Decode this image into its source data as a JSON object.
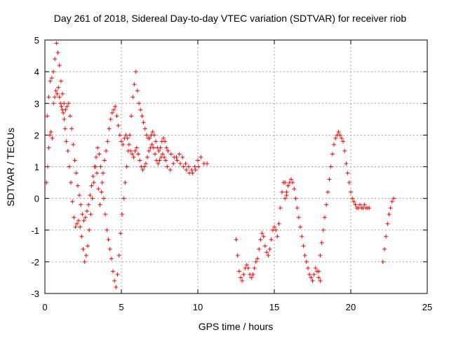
{
  "chart_data": {
    "type": "scatter",
    "title": "Day 261 of 2018, Sidereal Day-to-day VTEC variation (SDTVAR) for receiver riob",
    "xlabel": "GPS time / hours",
    "ylabel": "SDTVAR / TECUs",
    "xlim": [
      0,
      25
    ],
    "ylim": [
      -3,
      5
    ],
    "xticks": [
      "0",
      "5",
      "10",
      "15",
      "20",
      "25"
    ],
    "yticks": [
      "-3",
      "-2",
      "-1",
      "0",
      "1",
      "2",
      "3",
      "4",
      "5"
    ],
    "grid": true,
    "marker": "+",
    "color": "#ff0000",
    "series": [
      {
        "name": "SDTVAR",
        "x": [
          0.1,
          0.18,
          0.25,
          0.32,
          0.4,
          0.48,
          0.56,
          0.64,
          0.72,
          0.8,
          0.88,
          0.95,
          1.02,
          1.08,
          1.14,
          1.2,
          1.26,
          1.32,
          1.4,
          1.5,
          1.6,
          1.7,
          1.8,
          1.9,
          2.0,
          2.1,
          2.2,
          2.3,
          2.4,
          2.5,
          2.6,
          2.7,
          2.8,
          2.9,
          3.0,
          3.1,
          3.2,
          3.3,
          3.4,
          3.5,
          3.6,
          3.7,
          3.8,
          3.9,
          4.0,
          4.1,
          4.2,
          4.3,
          4.4,
          4.5,
          4.6,
          4.7,
          4.8,
          4.9,
          5.0,
          5.1,
          5.2,
          5.3,
          5.4,
          5.5,
          5.6,
          5.7,
          5.8,
          5.9,
          6.0,
          6.1,
          6.2,
          6.3,
          6.4,
          6.5,
          6.6,
          6.7,
          6.8,
          6.9,
          7.0,
          7.1,
          7.2,
          7.3,
          7.4,
          7.5,
          7.6,
          7.7,
          7.8,
          7.9,
          8.0,
          8.2,
          8.4,
          8.6,
          8.8,
          9.0,
          9.2,
          9.4,
          9.6,
          9.8,
          10.0,
          10.2,
          10.4,
          10.6,
          0.15,
          0.25,
          0.35,
          0.45,
          0.55,
          0.65,
          0.75,
          0.85,
          0.95,
          1.05,
          1.15,
          1.25,
          1.35,
          1.45,
          1.55,
          1.65,
          1.75,
          1.85,
          1.95,
          2.05,
          2.15,
          2.25,
          2.35,
          2.45,
          2.55,
          2.65,
          2.75,
          2.85,
          2.95,
          3.05,
          3.15,
          3.25,
          3.35,
          3.45,
          3.55,
          3.65,
          3.75,
          3.85,
          3.95,
          4.05,
          4.15,
          4.25,
          4.35,
          4.45,
          4.55,
          4.65,
          4.75,
          4.85,
          4.95,
          5.05,
          5.15,
          5.25,
          5.35,
          5.45,
          5.55,
          5.65,
          5.75,
          5.85,
          5.95,
          6.05,
          6.15,
          6.25,
          6.35,
          6.45,
          6.55,
          6.65,
          6.75,
          6.85,
          6.95,
          7.05,
          7.15,
          7.25,
          7.35,
          7.45,
          7.55,
          7.65,
          7.75,
          7.85,
          7.95,
          8.05,
          8.25,
          8.45,
          8.65,
          8.85,
          9.05,
          9.25,
          9.45,
          9.65,
          9.85,
          10.05,
          12.5,
          12.6,
          12.7,
          12.8,
          12.9,
          13.0,
          13.1,
          13.2,
          13.3,
          13.4,
          13.5,
          13.6,
          13.7,
          13.8,
          13.9,
          14.0,
          14.1,
          14.2,
          14.3,
          14.4,
          14.5,
          14.6,
          14.7,
          14.8,
          14.9,
          15.0,
          15.1,
          15.2,
          15.3,
          15.4,
          15.5,
          15.6,
          15.7,
          15.8,
          15.7,
          15.8,
          15.9,
          16.0,
          16.1,
          16.2,
          16.3,
          16.4,
          16.5,
          16.6,
          16.7,
          16.8,
          16.9,
          17.0,
          17.1,
          17.2,
          17.3,
          17.4,
          17.5,
          17.6,
          17.7,
          17.8,
          17.9,
          18.0,
          17.9,
          18.0,
          18.1,
          18.2,
          18.3,
          18.4,
          18.5,
          18.6,
          18.7,
          18.8,
          18.9,
          19.0,
          19.1,
          19.2,
          19.3,
          19.4,
          19.5,
          19.6,
          19.7,
          19.8,
          19.9,
          20.0,
          20.1,
          20.2,
          20.3,
          20.4,
          20.5,
          20.6,
          20.7,
          20.8,
          20.9,
          21.0,
          21.1,
          21.2,
          22.1,
          22.2,
          22.3,
          22.4,
          22.5,
          22.6,
          22.7,
          22.8
        ],
        "y": [
          0.5,
          1.0,
          1.6,
          2.0,
          2.1,
          1.9,
          3.0,
          3.2,
          3.4,
          3.3,
          3.5,
          3.2,
          3.0,
          2.9,
          2.8,
          2.7,
          2.5,
          2.2,
          1.8,
          1.5,
          1.0,
          0.5,
          -0.1,
          -0.6,
          -0.9,
          -0.8,
          -0.7,
          -0.9,
          -1.2,
          -1.6,
          -2.0,
          -1.8,
          -1.5,
          -1.0,
          -0.5,
          0.0,
          0.5,
          1.0,
          0.8,
          0.3,
          -0.2,
          0.2,
          0.8,
          1.2,
          1.5,
          1.8,
          2.2,
          2.5,
          2.7,
          2.8,
          2.9,
          2.6,
          2.3,
          2.0,
          1.8,
          1.7,
          1.9,
          2.0,
          1.9,
          1.7,
          1.5,
          1.4,
          1.3,
          1.5,
          1.6,
          1.4,
          1.2,
          1.0,
          0.9,
          1.0,
          1.1,
          1.3,
          1.5,
          1.6,
          1.7,
          1.6,
          1.4,
          1.2,
          1.1,
          1.2,
          1.3,
          1.4,
          1.3,
          1.2,
          1.0,
          0.9,
          1.1,
          1.3,
          1.4,
          1.3,
          1.1,
          1.0,
          0.9,
          1.0,
          1.2,
          1.3,
          1.1,
          1.1,
          2.6,
          3.2,
          3.7,
          3.8,
          4.0,
          4.4,
          4.9,
          4.6,
          4.2,
          3.7,
          3.3,
          3.0,
          2.8,
          2.9,
          3.0,
          2.6,
          2.2,
          1.7,
          1.2,
          0.8,
          0.4,
          0.1,
          -0.2,
          -0.5,
          -0.7,
          -0.6,
          -0.4,
          -0.2,
          0.1,
          0.4,
          0.7,
          1.0,
          1.3,
          1.6,
          1.4,
          1.0,
          0.5,
          0.0,
          -0.5,
          -1.0,
          -1.3,
          -1.6,
          -1.9,
          -2.3,
          -2.6,
          -2.8,
          -2.4,
          -1.8,
          -1.1,
          -0.5,
          0.0,
          0.5,
          1.0,
          1.5,
          2.0,
          2.6,
          3.2,
          3.6,
          4.0,
          3.4,
          3.0,
          2.8,
          2.6,
          2.4,
          2.2,
          2.0,
          1.9,
          1.9,
          2.0,
          2.1,
          2.0,
          1.8,
          1.6,
          1.5,
          1.6,
          1.8,
          1.9,
          1.8,
          1.6,
          1.5,
          1.4,
          1.3,
          1.2,
          1.1,
          1.0,
          0.9,
          0.8,
          0.8,
          0.9,
          1.0,
          -1.3,
          -1.8,
          -2.3,
          -2.5,
          -2.6,
          -2.4,
          -2.2,
          -2.1,
          -2.2,
          -2.4,
          -2.5,
          -2.4,
          -2.2,
          -2.0,
          -1.9,
          -1.6,
          -1.3,
          -1.1,
          -1.2,
          -1.5,
          -1.7,
          -1.8,
          -1.6,
          -1.3,
          -1.0,
          -0.9,
          -1.0,
          -1.2,
          -0.8,
          -0.3,
          0.2,
          0.5,
          0.5,
          0.1,
          0.0,
          0.2,
          0.4,
          0.5,
          0.6,
          0.5,
          0.3,
          0.0,
          -0.3,
          -0.6,
          -0.9,
          -1.2,
          -1.5,
          -1.8,
          -2.0,
          -2.2,
          -2.4,
          -2.5,
          -2.6,
          -2.4,
          -2.2,
          -2.3,
          -2.5,
          -2.6,
          -2.3,
          -1.8,
          -1.4,
          -1.0,
          -0.6,
          -0.2,
          0.2,
          0.6,
          1.0,
          1.4,
          1.7,
          1.9,
          2.0,
          2.1,
          2.0,
          1.9,
          1.8,
          1.5,
          1.1,
          0.8,
          0.5,
          0.2,
          0.0,
          -0.1,
          -0.2,
          -0.3,
          -0.3,
          -0.2,
          -0.3,
          -0.3,
          -0.2,
          -0.3,
          -0.3,
          -0.3,
          -2.0,
          -1.6,
          -1.2,
          -0.8,
          -0.5,
          -0.3,
          -0.1,
          0.0
        ]
      }
    ]
  }
}
